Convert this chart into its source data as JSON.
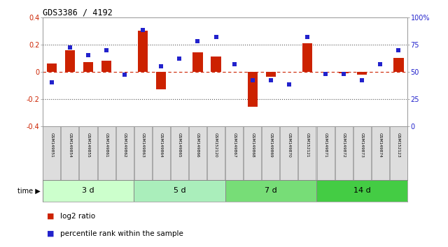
{
  "title": "GDS3386 / 4192",
  "samples": [
    "GSM149851",
    "GSM149854",
    "GSM149855",
    "GSM149861",
    "GSM149862",
    "GSM149863",
    "GSM149864",
    "GSM149865",
    "GSM149866",
    "GSM152120",
    "GSM149867",
    "GSM149868",
    "GSM149869",
    "GSM149870",
    "GSM152121",
    "GSM149871",
    "GSM149872",
    "GSM149873",
    "GSM149874",
    "GSM152123"
  ],
  "log2_ratio": [
    0.06,
    0.16,
    0.07,
    0.08,
    0.0,
    0.3,
    -0.13,
    0.0,
    0.14,
    0.11,
    0.0,
    -0.26,
    -0.04,
    0.0,
    0.21,
    0.0,
    -0.01,
    -0.02,
    0.0,
    0.1
  ],
  "percentile_rank": [
    40,
    72,
    65,
    70,
    47,
    88,
    55,
    62,
    78,
    82,
    57,
    42,
    42,
    38,
    82,
    48,
    48,
    42,
    57,
    70
  ],
  "groups": [
    {
      "label": "3 d",
      "start": 0,
      "end": 5
    },
    {
      "label": "5 d",
      "start": 5,
      "end": 10
    },
    {
      "label": "7 d",
      "start": 10,
      "end": 15
    },
    {
      "label": "14 d",
      "start": 15,
      "end": 20
    }
  ],
  "group_colors": [
    "#ccffcc",
    "#aaeebb",
    "#77dd77",
    "#44cc44"
  ],
  "bar_color": "#cc2200",
  "dot_color": "#2222cc",
  "zero_line_color": "#cc2200",
  "dotted_line_color": "#555555",
  "ylim_left": [
    -0.4,
    0.4
  ],
  "ylim_right": [
    0,
    100
  ],
  "yticks_left": [
    -0.4,
    -0.2,
    0.0,
    0.2,
    0.4
  ],
  "yticks_right": [
    0,
    25,
    50,
    75,
    100
  ],
  "ytick_labels_right": [
    "0",
    "25",
    "50",
    "75",
    "100%"
  ],
  "background_color": "#ffffff"
}
